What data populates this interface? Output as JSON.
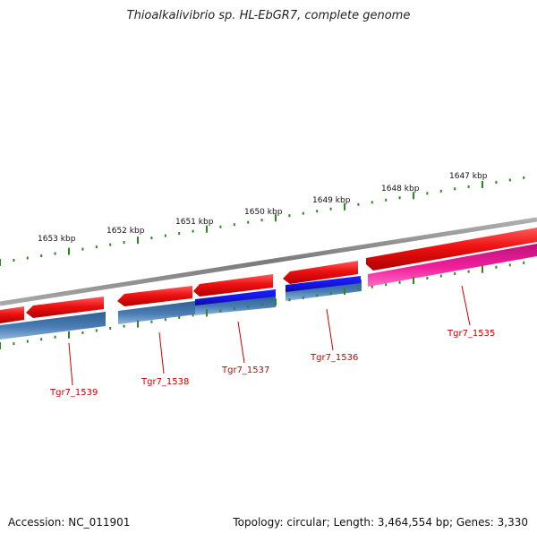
{
  "title": "Thioalkalivibrio sp. HL-EbGR7, complete genome",
  "footer": {
    "accession": "Accession: NC_011901",
    "summary": "Topology: circular; Length: 3,464,554 bp; Genes: 3,330"
  },
  "colors": {
    "forward_strand_gene": "#ee1111",
    "reverse_strand_gene": "#4a7db4",
    "highlight_reverse_gene": "#1414dd",
    "highlight_forward_gene": "#f0209c",
    "backbone": "#888888",
    "ticks": "#2a8a1a",
    "gene_label": "#cc0000"
  },
  "scale_labels": [
    "1647 kbp",
    "1648 kbp",
    "1649 kbp",
    "1650 kbp",
    "1651 kbp",
    "1652 kbp",
    "1653 kbp"
  ],
  "gene_labels": [
    "Tgr7_1535",
    "Tgr7_1536",
    "Tgr7_1537",
    "Tgr7_1538",
    "Tgr7_1539"
  ]
}
